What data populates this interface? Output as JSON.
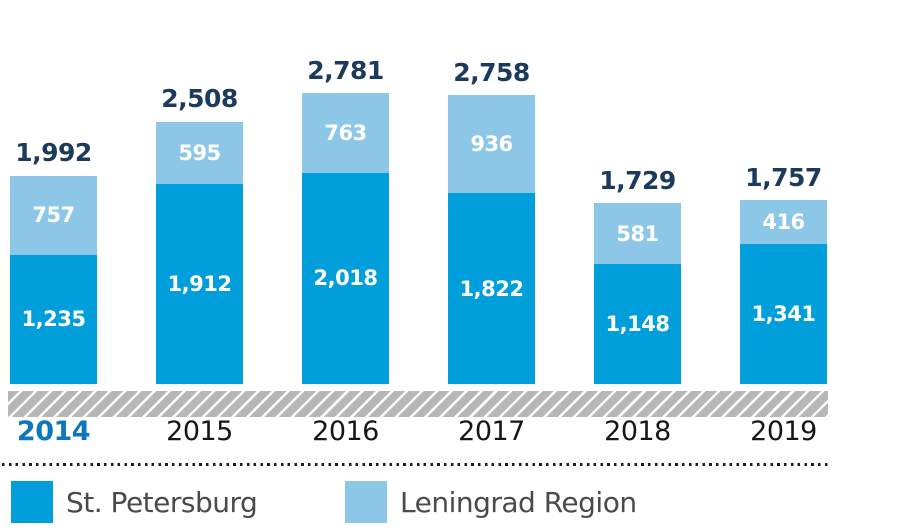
{
  "chart_data": {
    "type": "bar",
    "stacked": true,
    "orientation": "vertical",
    "categories": [
      "2014",
      "2015",
      "2016",
      "2017",
      "2018",
      "2019"
    ],
    "series": [
      {
        "name": "St. Petersburg",
        "color": "#009fdb",
        "values": [
          1235,
          1912,
          2018,
          1822,
          1148,
          1341
        ],
        "values_formatted": [
          "1,235",
          "1,912",
          "2,018",
          "1,822",
          "1,148",
          "1,341"
        ]
      },
      {
        "name": "Leningrad Region",
        "color": "#8cc7e8",
        "values": [
          757,
          595,
          763,
          936,
          581,
          416
        ],
        "values_formatted": [
          "757",
          "595",
          "763",
          "936",
          "581",
          "416"
        ]
      }
    ],
    "totals": [
      1992,
      2508,
      2781,
      2758,
      1729,
      1757
    ],
    "totals_formatted": [
      "1,992",
      "2,508",
      "2,781",
      "2,758",
      "1,729",
      "1,757"
    ],
    "highlighted_category": "2014",
    "value_labels": "inside-segments-white",
    "total_labels": "above-bars",
    "axis": {
      "x_ticks": [
        "2014",
        "2015",
        "2016",
        "2017",
        "2018",
        "2019"
      ],
      "y_axis_visible": false,
      "grid": false
    },
    "legend_position": "bottom"
  },
  "colors": {
    "total_label": "#1b3a5c",
    "year_label": "#161616",
    "year_label_active": "#0d76bc",
    "legend_text": "#4a4a4a",
    "hatch_gray": "#b7b7b7",
    "background": "#ffffff"
  }
}
